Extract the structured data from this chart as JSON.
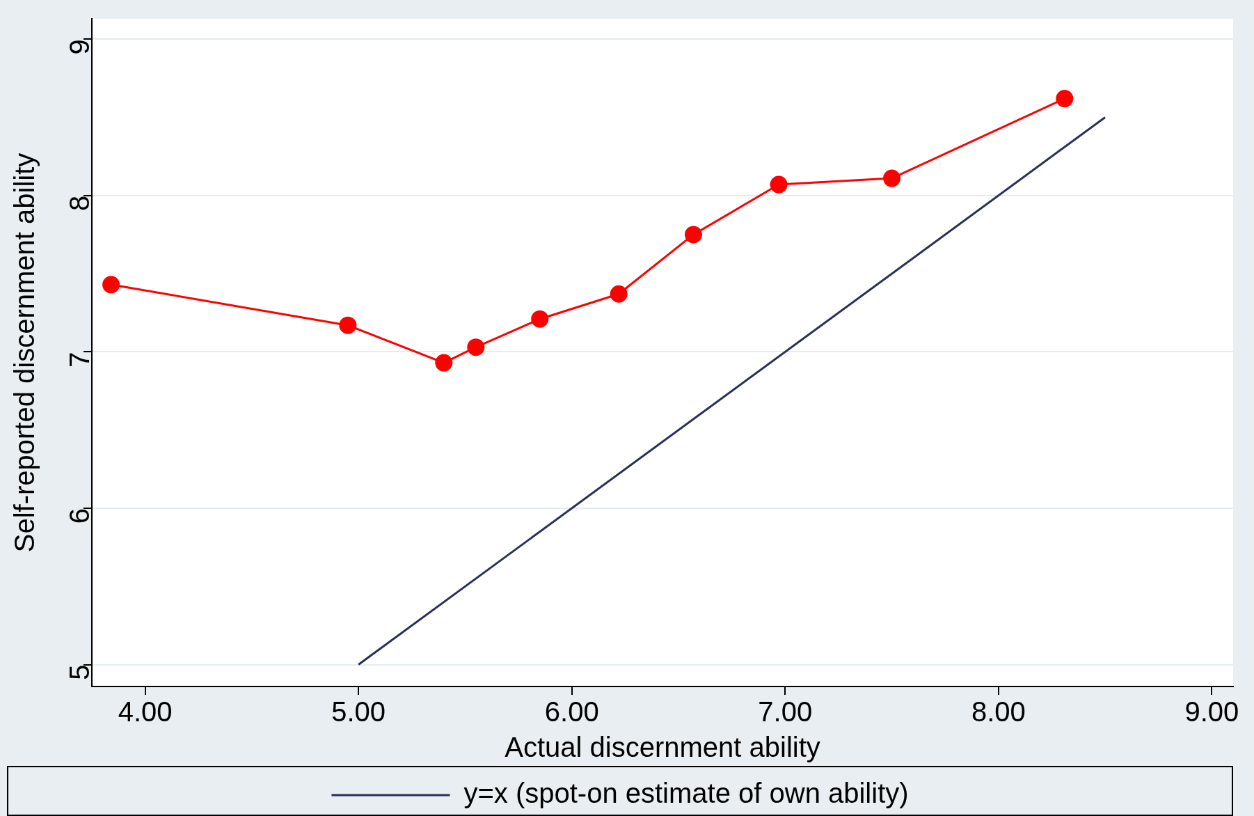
{
  "chart_data": {
    "type": "line",
    "xlabel": "Actual discernment ability",
    "ylabel": "Self-reported discernment ability",
    "xlim": [
      3.75,
      9.1
    ],
    "ylim": [
      4.86,
      9.13
    ],
    "xticks": [
      {
        "value": 4,
        "label": "4.00"
      },
      {
        "value": 5,
        "label": "5.00"
      },
      {
        "value": 6,
        "label": "6.00"
      },
      {
        "value": 7,
        "label": "7.00"
      },
      {
        "value": 8,
        "label": "8.00"
      },
      {
        "value": 9,
        "label": "9.00"
      }
    ],
    "yticks": [
      5,
      6,
      7,
      8,
      9
    ],
    "grid": "y",
    "legend": "bottom",
    "series": [
      {
        "color": "#ff0000",
        "marker": "circle",
        "x": [
          3.84,
          4.95,
          5.4,
          5.55,
          5.85,
          6.22,
          6.57,
          6.97,
          7.5,
          8.31
        ],
        "values": [
          7.43,
          7.17,
          6.93,
          7.03,
          7.21,
          7.37,
          7.75,
          8.07,
          8.11,
          8.62
        ]
      },
      {
        "name": "y=x (spot-on estimate of own ability)",
        "color": "#2a2f5a",
        "marker": "none",
        "x": [
          5,
          8.5
        ],
        "values": [
          5,
          8.5
        ]
      }
    ]
  }
}
